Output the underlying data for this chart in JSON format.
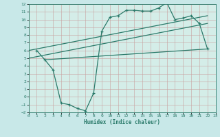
{
  "xlabel": "Humidex (Indice chaleur)",
  "bg_color": "#c8e8e8",
  "plot_bg_color": "#d4ede8",
  "line_color": "#2a7a6a",
  "xlim": [
    0,
    23
  ],
  "ylim": [
    -2,
    12
  ],
  "xticks": [
    0,
    1,
    2,
    3,
    4,
    5,
    6,
    7,
    8,
    9,
    10,
    11,
    12,
    13,
    14,
    15,
    16,
    17,
    18,
    19,
    20,
    21,
    22,
    23
  ],
  "yticks": [
    -2,
    -1,
    0,
    1,
    2,
    3,
    4,
    5,
    6,
    7,
    8,
    9,
    10,
    11,
    12
  ],
  "zigzag_x": [
    1,
    2,
    3,
    4,
    5,
    6,
    7,
    8,
    9,
    10,
    11,
    12,
    13,
    14,
    15,
    16,
    17,
    18,
    19,
    20,
    21,
    22
  ],
  "zigzag_y": [
    6.0,
    4.8,
    3.5,
    -0.8,
    -1.0,
    -1.5,
    -1.8,
    0.5,
    8.5,
    10.3,
    10.5,
    11.2,
    11.2,
    11.1,
    11.1,
    11.5,
    12.2,
    10.0,
    10.2,
    10.5,
    9.5,
    6.2
  ],
  "line1_x": [
    0,
    22
  ],
  "line1_y": [
    6.0,
    10.5
  ],
  "line2_x": [
    0,
    22
  ],
  "line2_y": [
    5.0,
    9.5
  ],
  "line3_x": [
    2,
    22
  ],
  "line3_y": [
    4.8,
    6.2
  ]
}
